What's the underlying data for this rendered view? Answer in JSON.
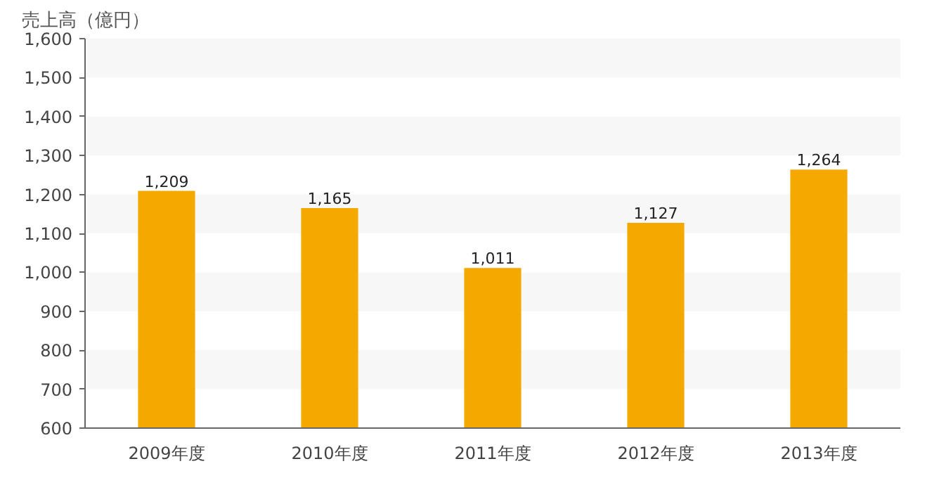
{
  "chart_data": {
    "type": "bar",
    "ylabel": "売上高（億円）",
    "categories": [
      "2009年度",
      "2010年度",
      "2011年度",
      "2012年度",
      "2013年度"
    ],
    "values": [
      1209,
      1165,
      1011,
      1127,
      1264
    ],
    "value_labels": [
      "1,209",
      "1,165",
      "1,011",
      "1,127",
      "1,264"
    ],
    "color": "#f5a800",
    "ylim": [
      600,
      1600
    ],
    "yticks": [
      {
        "value": 600,
        "label": "600"
      },
      {
        "value": 700,
        "label": "700"
      },
      {
        "value": 800,
        "label": "800"
      },
      {
        "value": 900,
        "label": "900"
      },
      {
        "value": 1000,
        "label": "1,000"
      },
      {
        "value": 1100,
        "label": "1,100"
      },
      {
        "value": 1200,
        "label": "1,200"
      },
      {
        "value": 1300,
        "label": "1,300"
      },
      {
        "value": 1400,
        "label": "1,400"
      },
      {
        "value": 1500,
        "label": "1,500"
      },
      {
        "value": 1600,
        "label": "1,600"
      }
    ],
    "grid": false
  }
}
